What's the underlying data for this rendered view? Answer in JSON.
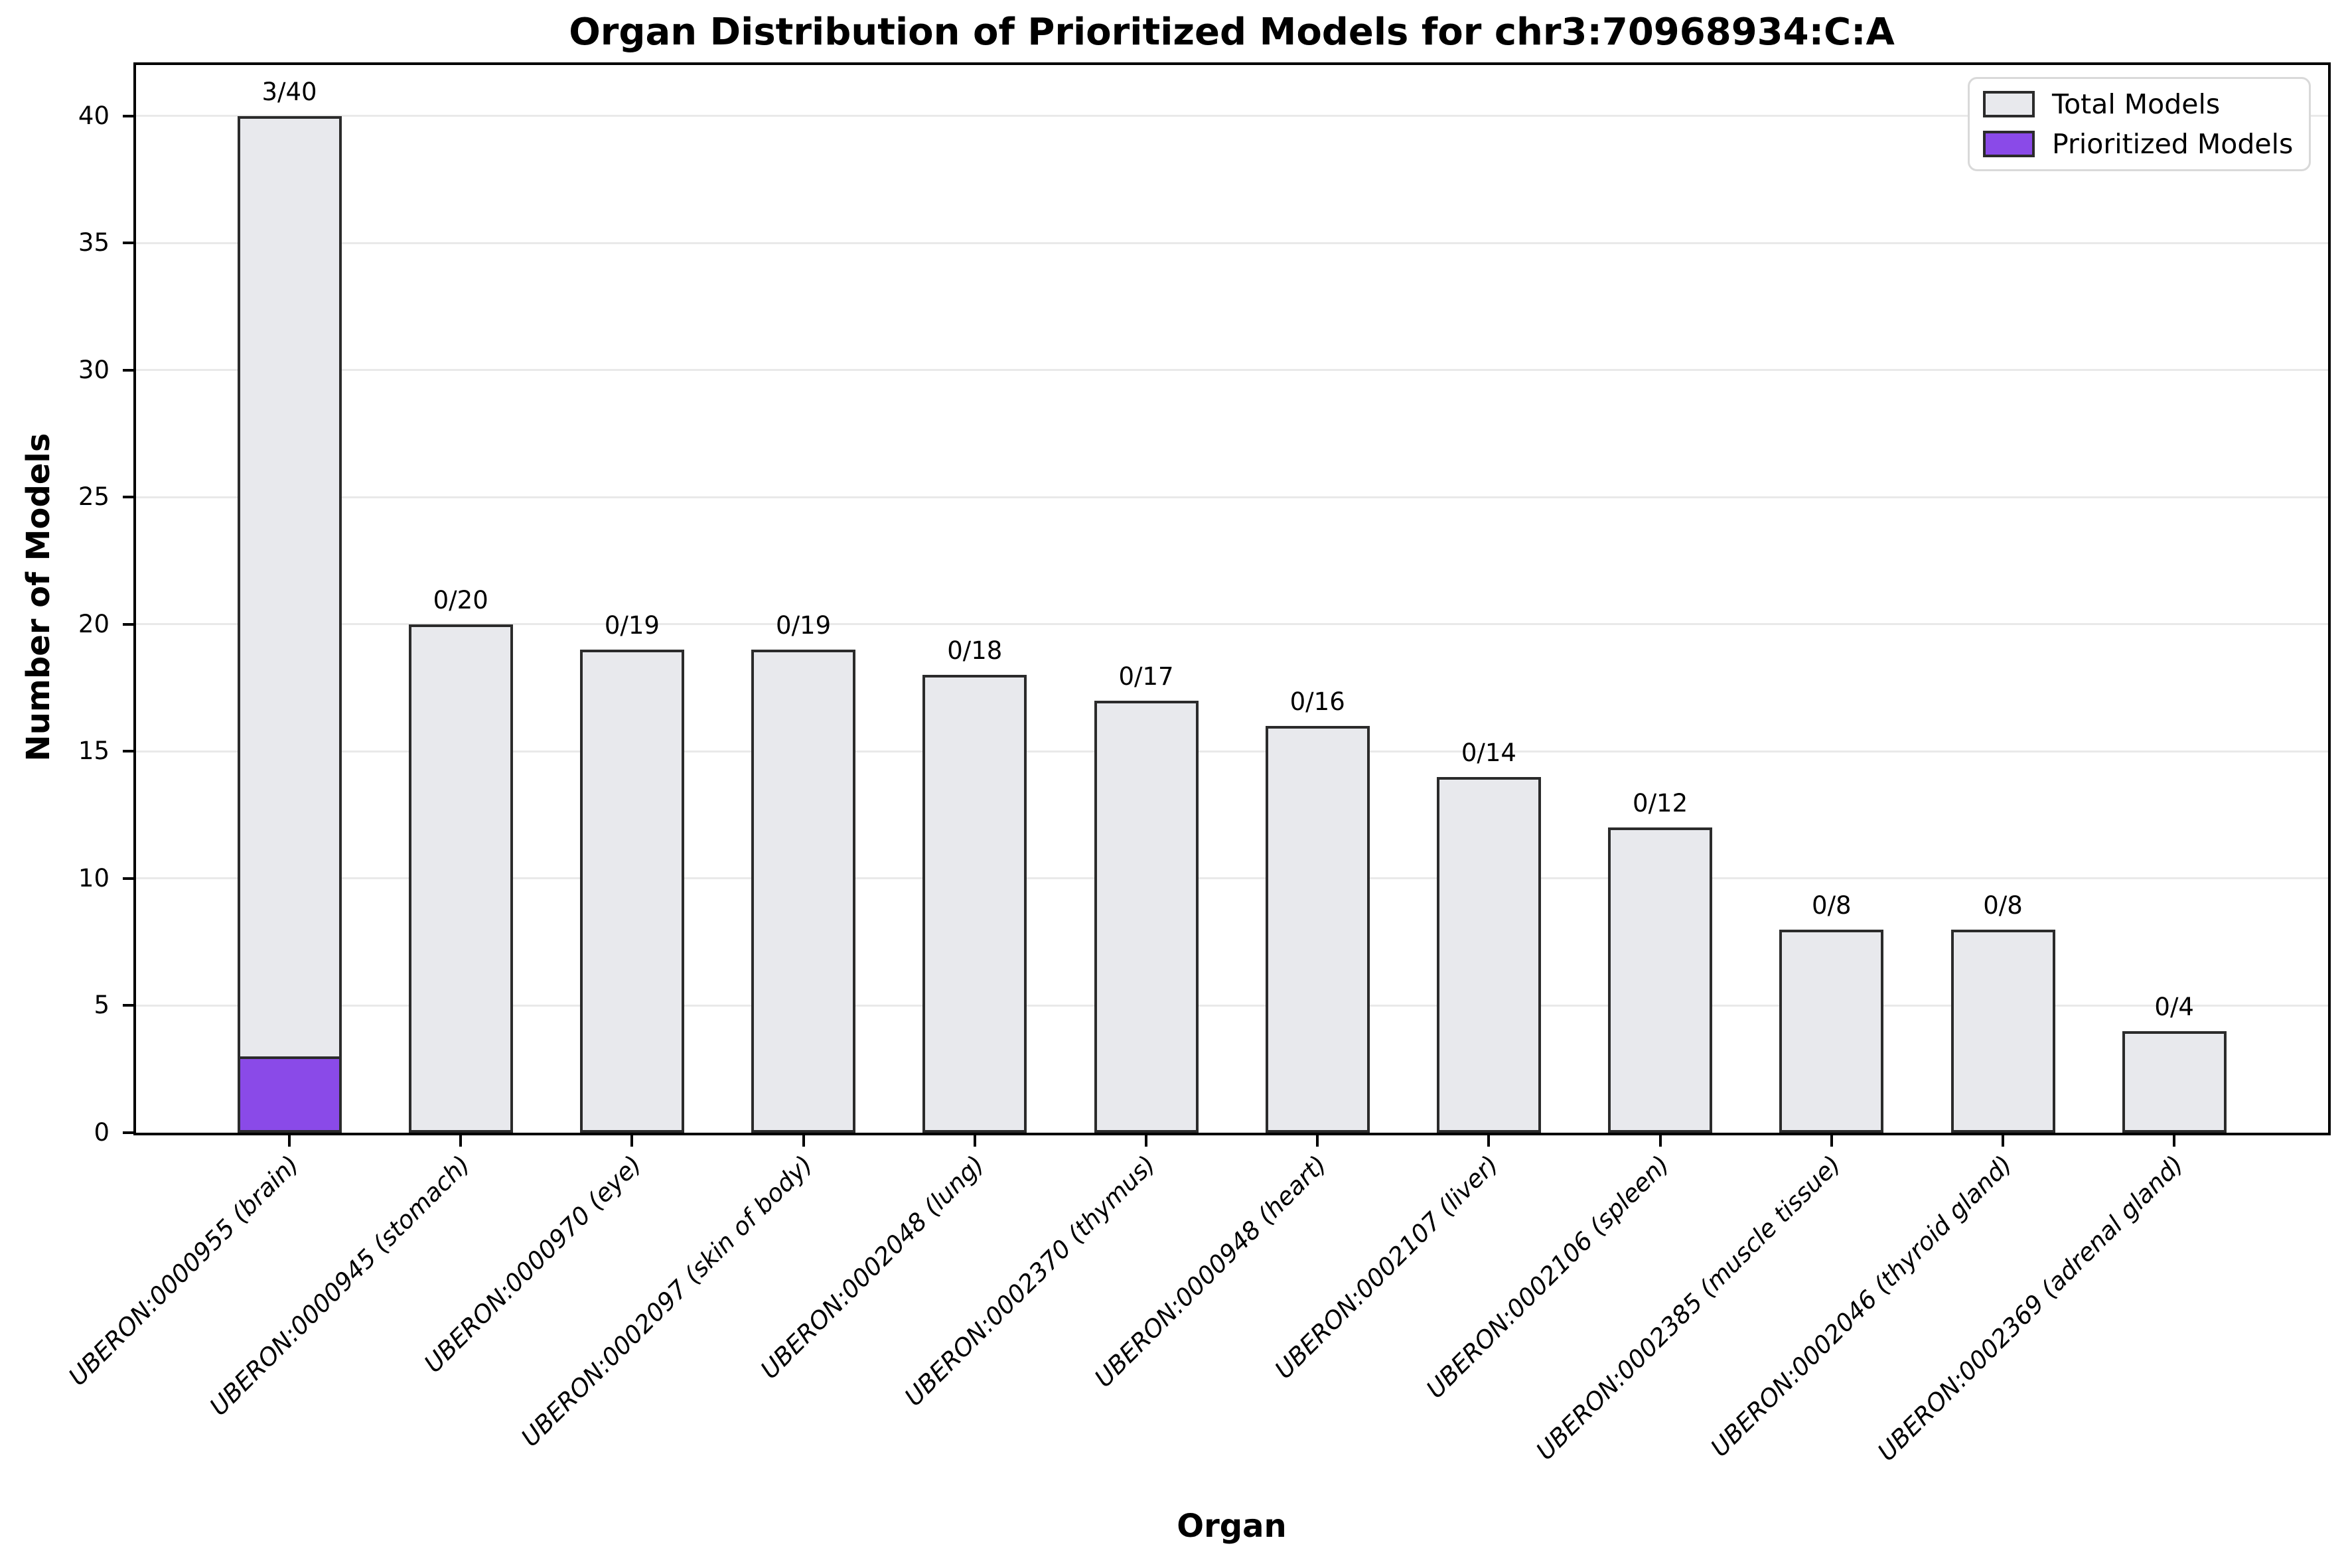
{
  "chart_data": {
    "type": "bar",
    "title": "Organ Distribution of Prioritized Models for chr3:70968934:C:A",
    "xlabel": "Organ",
    "ylabel": "Number of Models",
    "categories": [
      "UBERON:0000955 (brain)",
      "UBERON:0000945 (stomach)",
      "UBERON:0000970 (eye)",
      "UBERON:0002097 (skin of body)",
      "UBERON:0002048 (lung)",
      "UBERON:0002370 (thymus)",
      "UBERON:0000948 (heart)",
      "UBERON:0002107 (liver)",
      "UBERON:0002106 (spleen)",
      "UBERON:0002385 (muscle tissue)",
      "UBERON:0002046 (thyroid gland)",
      "UBERON:0002369 (adrenal gland)"
    ],
    "series": [
      {
        "name": "Total Models",
        "color": "#e8e9ed",
        "values": [
          40,
          20,
          19,
          19,
          18,
          17,
          16,
          14,
          12,
          8,
          8,
          4
        ]
      },
      {
        "name": "Prioritized Models",
        "color": "#8a4ae8",
        "values": [
          3,
          0,
          0,
          0,
          0,
          0,
          0,
          0,
          0,
          0,
          0,
          0
        ]
      }
    ],
    "bar_labels": [
      "3/40",
      "0/20",
      "0/19",
      "0/19",
      "0/18",
      "0/17",
      "0/16",
      "0/14",
      "0/12",
      "0/8",
      "0/8",
      "0/4"
    ],
    "yticks": [
      0,
      5,
      10,
      15,
      20,
      25,
      30,
      35,
      40
    ],
    "ylim": [
      0,
      42
    ],
    "grid": "horizontal",
    "legend_position": "upper right",
    "bar_edge_color": "#2b2b2b",
    "axis_color": "#000000",
    "gridline_color": "#e9e9e9"
  }
}
